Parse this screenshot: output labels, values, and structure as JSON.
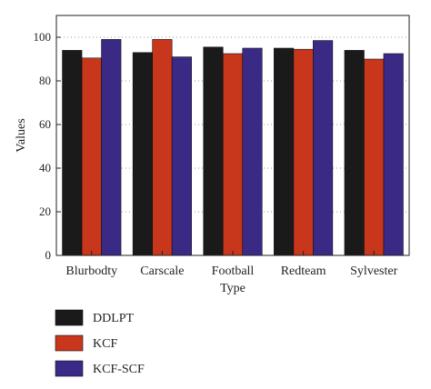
{
  "chart_data": {
    "type": "bar",
    "title": "",
    "xlabel": "Type",
    "ylabel": "Values",
    "ylim": [
      0,
      110
    ],
    "yticks": [
      0,
      20,
      40,
      60,
      80,
      100
    ],
    "grid": "dotted-horizontal",
    "legend_position": "bottom-left",
    "categories": [
      "Blurbodty",
      "Carscale",
      "Football",
      "Redteam",
      "Sylvester"
    ],
    "series": [
      {
        "name": "DDLPT",
        "color": "#1a1a1a",
        "values": [
          94,
          93,
          95.5,
          95,
          94
        ]
      },
      {
        "name": "KCF",
        "color": "#c8361c",
        "values": [
          90.5,
          99,
          92.5,
          94.5,
          90
        ]
      },
      {
        "name": "KCF-SCF",
        "color": "#3a2a86",
        "values": [
          99,
          91,
          95,
          98.5,
          92.5
        ]
      }
    ]
  }
}
